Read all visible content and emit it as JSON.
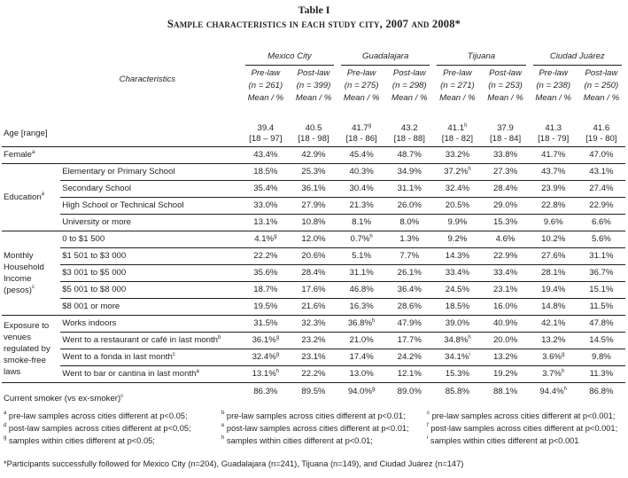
{
  "title": "Table I",
  "subtitle": "Sample characteristics in each study city, 2007 and 2008*",
  "header": {
    "characteristics": "Characteristics",
    "cities": [
      "Mexico City",
      "Guadalajara",
      "Tijuana",
      "Ciudad Juárez"
    ],
    "periods": [
      "Pre-law",
      "Post-law",
      "Pre-law",
      "Post-law",
      "Pre-law",
      "Post-law",
      "Pre-law",
      "Post-law"
    ],
    "ns": [
      "(n = 261)",
      "(n = 399)",
      "(n = 275)",
      "(n = 298)",
      "(n = 271)",
      "(n = 253)",
      "(n = 238)",
      "(n = 250)"
    ],
    "stat": "Mean / %"
  },
  "age": {
    "label": "Age [range]",
    "values": [
      {
        "v": "39.4",
        "r": "[18 – 97]"
      },
      {
        "v": "40.5",
        "r": "[18 - 98]"
      },
      {
        "v": "41.7",
        "s": "g",
        "r": "[18 - 86]"
      },
      {
        "v": "43.2",
        "r": "[18 - 88]"
      },
      {
        "v": "41.1",
        "s": "h",
        "r": "[18 - 82]"
      },
      {
        "v": "37.9",
        "r": "[18 - 84]"
      },
      {
        "v": "41.3",
        "r": "[18 - 79]"
      },
      {
        "v": "41.6",
        "r": "[19 - 80]"
      }
    ]
  },
  "female": {
    "label": "Female",
    "sup": "a",
    "values": [
      {
        "v": "43.4%"
      },
      {
        "v": "42.9%"
      },
      {
        "v": "45.4%"
      },
      {
        "v": "48.7%"
      },
      {
        "v": "33.2%"
      },
      {
        "v": "33.8%"
      },
      {
        "v": "41.7%"
      },
      {
        "v": "47.0%"
      }
    ]
  },
  "groups": [
    {
      "label": "Education",
      "sup": "a",
      "rows": [
        {
          "label": "Elementary or Primary School",
          "values": [
            {
              "v": "18.5%"
            },
            {
              "v": "25.3%"
            },
            {
              "v": "40.3%"
            },
            {
              "v": "34.9%"
            },
            {
              "v": "37.2%",
              "s": "h"
            },
            {
              "v": "27.3%"
            },
            {
              "v": "43.7%"
            },
            {
              "v": "43.1%"
            }
          ]
        },
        {
          "label": "Secondary School",
          "values": [
            {
              "v": "35.4%"
            },
            {
              "v": "36.1%"
            },
            {
              "v": "30.4%"
            },
            {
              "v": "31.1%"
            },
            {
              "v": "32.4%"
            },
            {
              "v": "28.4%"
            },
            {
              "v": "23.9%"
            },
            {
              "v": "27.4%"
            }
          ]
        },
        {
          "label": "High School or Technical School",
          "values": [
            {
              "v": "33.0%"
            },
            {
              "v": "27.9%"
            },
            {
              "v": "21.3%"
            },
            {
              "v": "26.0%"
            },
            {
              "v": "20.5%"
            },
            {
              "v": "29.0%"
            },
            {
              "v": "22.8%"
            },
            {
              "v": "22.9%"
            }
          ]
        },
        {
          "label": "University or more",
          "values": [
            {
              "v": "13.1%"
            },
            {
              "v": "10.8%"
            },
            {
              "v": "8.1%"
            },
            {
              "v": "8.0%"
            },
            {
              "v": "9.9%"
            },
            {
              "v": "15.3%"
            },
            {
              "v": "9.6%"
            },
            {
              "v": "6.6%"
            }
          ]
        }
      ]
    },
    {
      "label": "Monthly Household Income (pesos)",
      "sup": "c",
      "rows": [
        {
          "label": "0 to $1 500",
          "values": [
            {
              "v": "4.1%",
              "s": "g"
            },
            {
              "v": "12.0%"
            },
            {
              "v": "0.7%",
              "s": "h"
            },
            {
              "v": "1.3%"
            },
            {
              "v": "9.2%"
            },
            {
              "v": "4.6%"
            },
            {
              "v": "10.2%"
            },
            {
              "v": "5.6%"
            }
          ]
        },
        {
          "label": "$1 501 to $3 000",
          "values": [
            {
              "v": "22.2%"
            },
            {
              "v": "20.6%"
            },
            {
              "v": "5.1%"
            },
            {
              "v": "7.7%"
            },
            {
              "v": "14.3%"
            },
            {
              "v": "22.9%"
            },
            {
              "v": "27.6%"
            },
            {
              "v": "31.1%"
            }
          ]
        },
        {
          "label": "$3 001 to $5 000",
          "values": [
            {
              "v": "35.6%"
            },
            {
              "v": "28.4%"
            },
            {
              "v": "31.1%"
            },
            {
              "v": "26.1%"
            },
            {
              "v": "33.4%"
            },
            {
              "v": "33.4%"
            },
            {
              "v": "28.1%"
            },
            {
              "v": "36.7%"
            }
          ]
        },
        {
          "label": "$5 001 to $8 000",
          "values": [
            {
              "v": "18.7%"
            },
            {
              "v": "17.6%"
            },
            {
              "v": "46.8%"
            },
            {
              "v": "36.4%"
            },
            {
              "v": "24.5%"
            },
            {
              "v": "23.1%"
            },
            {
              "v": "19.4%"
            },
            {
              "v": "15.1%"
            }
          ]
        },
        {
          "label": "$8 001 or more",
          "values": [
            {
              "v": "19.5%"
            },
            {
              "v": "21.6%"
            },
            {
              "v": "16.3%"
            },
            {
              "v": "28.6%"
            },
            {
              "v": "18.5%"
            },
            {
              "v": "16.0%"
            },
            {
              "v": "14.8%"
            },
            {
              "v": "11.5%"
            }
          ]
        }
      ]
    },
    {
      "label": "Exposure to venues regulated by smoke-free laws",
      "rows": [
        {
          "label": "Works indoors",
          "values": [
            {
              "v": "31.5%"
            },
            {
              "v": "32.3%"
            },
            {
              "v": "36.8%",
              "s": "h"
            },
            {
              "v": "47.9%"
            },
            {
              "v": "39.0%"
            },
            {
              "v": "40.9%"
            },
            {
              "v": "42.1%"
            },
            {
              "v": "47.8%"
            }
          ]
        },
        {
          "label": "Went to a restaurant or café in last month",
          "sup": "b",
          "values": [
            {
              "v": "36.1%",
              "s": "g"
            },
            {
              "v": "23.2%"
            },
            {
              "v": "21.0%"
            },
            {
              "v": "17.7%"
            },
            {
              "v": "34.8%",
              "s": "h"
            },
            {
              "v": "20.0%"
            },
            {
              "v": "13.2%"
            },
            {
              "v": "14.5%"
            }
          ]
        },
        {
          "label": "Went to a fonda in last month",
          "sup": "c",
          "values": [
            {
              "v": "32.4%",
              "s": "g"
            },
            {
              "v": "23.1%"
            },
            {
              "v": "17.4%"
            },
            {
              "v": "24.2%"
            },
            {
              "v": "34.1%",
              "s": "i"
            },
            {
              "v": "13.2%"
            },
            {
              "v": "3.6%",
              "s": "g"
            },
            {
              "v": "9.8%"
            }
          ]
        },
        {
          "label": "Went to bar or cantina in last month",
          "sup": "a",
          "values": [
            {
              "v": "13.1%",
              "s": "h"
            },
            {
              "v": "22.2%"
            },
            {
              "v": "13.0%"
            },
            {
              "v": "12.1%"
            },
            {
              "v": "15.3%"
            },
            {
              "v": "19.2%"
            },
            {
              "v": "3.7%",
              "s": "h"
            },
            {
              "v": "11.3%"
            }
          ]
        }
      ]
    }
  ],
  "smoker": {
    "label": "Current smoker (vs ex-smoker)",
    "sup": "c",
    "values": [
      {
        "v": "86.3%"
      },
      {
        "v": "89.5%"
      },
      {
        "v": "94.0%",
        "s": "g"
      },
      {
        "v": "89.0%"
      },
      {
        "v": "85.8%"
      },
      {
        "v": "88.1%"
      },
      {
        "v": "94.4%",
        "s": "h"
      },
      {
        "v": "86.8%"
      }
    ]
  },
  "footnotes": [
    {
      "m": "a",
      "t": " pre-law samples across cities different at p<0.05;"
    },
    {
      "m": "b",
      "t": " pre-law samples across cities different at p<0.01;"
    },
    {
      "m": "c",
      "t": " pre-law samples across cities different at p<0.001;"
    },
    {
      "m": "d",
      "t": " post-law samples across cities different at p<0.05;"
    },
    {
      "m": "e",
      "t": " post-law samples across cities different at p<0.01;"
    },
    {
      "m": "f",
      "t": " post-law samples across cities different at p<0.001;"
    },
    {
      "m": "g",
      "t": " samples within cities different at p<0.05;"
    },
    {
      "m": "h",
      "t": " samples within cities different at p<0.01;"
    },
    {
      "m": "i",
      "t": " samples within cities different at p<0.001"
    }
  ],
  "note": "*Participants successfully followed for Mexico City (n=204), Guadalajara (n=241), Tijuana (n=149), and Ciudad Juárez (n=147)"
}
